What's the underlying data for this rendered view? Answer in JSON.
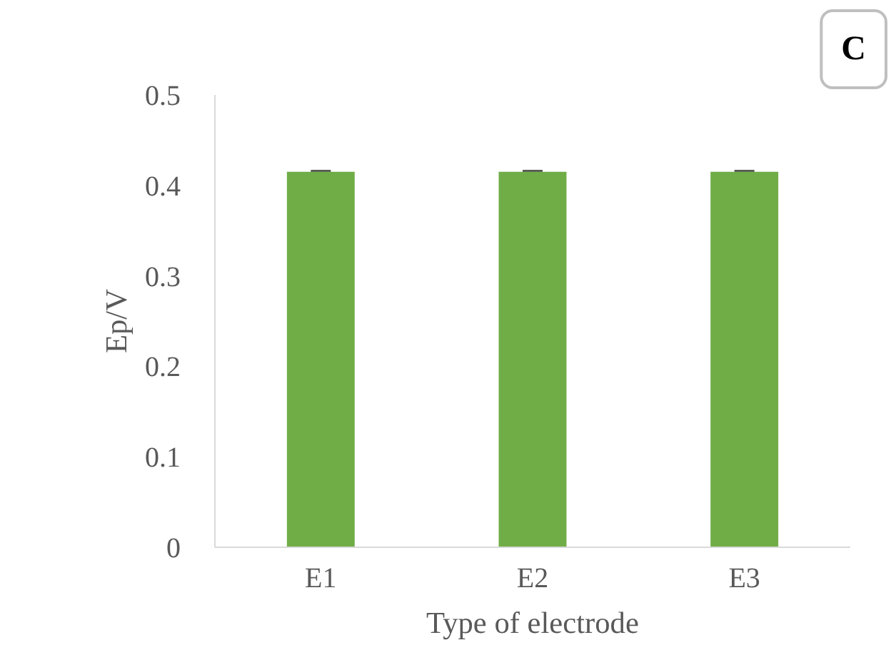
{
  "chart_data": {
    "type": "bar",
    "xlabel": "Type of electrode",
    "ylabel": "Ep/V",
    "categories": [
      "E1",
      "E2",
      "E3"
    ],
    "values": [
      0.415,
      0.415,
      0.415
    ],
    "errors": [
      0.001,
      0.001,
      0.001
    ],
    "color": "#70ad47",
    "ylim": [
      0,
      0.5
    ],
    "yticks": [
      0,
      0.1,
      0.2,
      0.3,
      0.4,
      0.5
    ],
    "grid": false,
    "annotations": [
      "C"
    ]
  }
}
